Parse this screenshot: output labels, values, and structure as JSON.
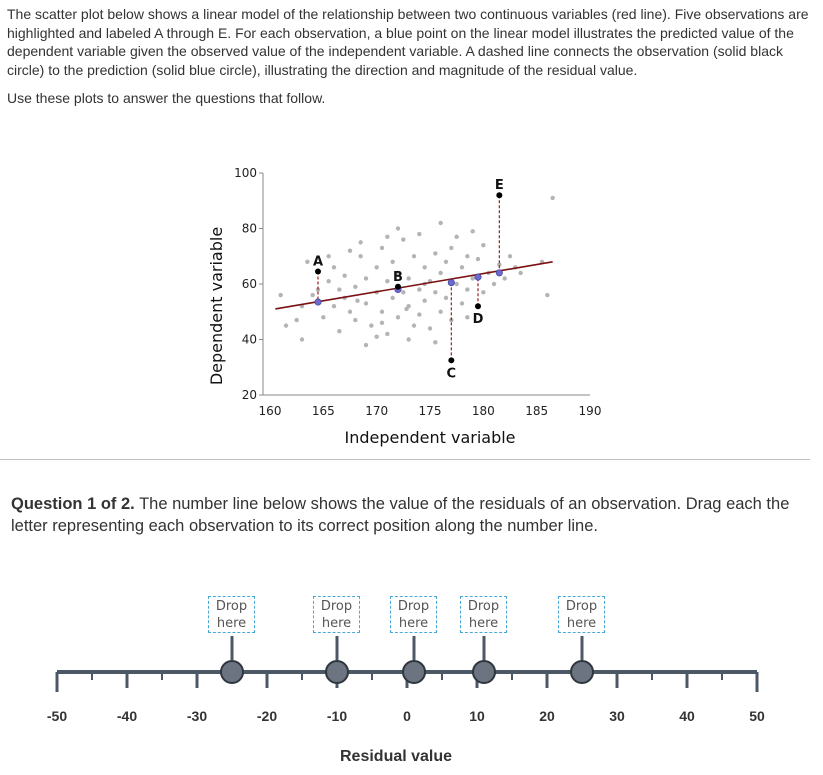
{
  "intro": {
    "paragraph": "The scatter plot below shows a linear model of the relationship between two continuous variables (red line). Five observations are highlighted and labeled A through E. For each observation, a blue point on the linear model illustrates the predicted value of the dependent variable given the observed value of the independent variable. A dashed line connects the observation (solid black circle) to the prediction (solid blue circle), illustrating the direction and magnitude of the residual value.",
    "instruction": "Use these plots to answer the questions that follow."
  },
  "chart_data": {
    "type": "scatter",
    "xlabel": "Independent variable",
    "ylabel": "Dependent variable",
    "xlim": [
      160,
      190
    ],
    "ylim": [
      20,
      100
    ],
    "xticks": [
      160,
      165,
      170,
      175,
      180,
      185,
      190
    ],
    "yticks": [
      20,
      40,
      60,
      80,
      100
    ],
    "grid": false,
    "regression_line": {
      "x": [
        160.5,
        186.5
      ],
      "y": [
        51,
        68
      ]
    },
    "highlighted": [
      {
        "label": "A",
        "x": 164.5,
        "observed": 64.5,
        "predicted": 53.5
      },
      {
        "label": "B",
        "x": 172,
        "observed": 59,
        "predicted": 58
      },
      {
        "label": "C",
        "x": 177,
        "observed": 32.5,
        "predicted": 60.5
      },
      {
        "label": "D",
        "x": 179.5,
        "observed": 52,
        "predicted": 62.5
      },
      {
        "label": "E",
        "x": 181.5,
        "observed": 92,
        "predicted": 64
      }
    ],
    "points": [
      [
        161,
        56
      ],
      [
        162.5,
        47
      ],
      [
        163,
        52
      ],
      [
        163.5,
        68
      ],
      [
        164,
        56
      ],
      [
        164.5,
        58
      ],
      [
        165,
        48
      ],
      [
        165.5,
        61
      ],
      [
        166,
        52
      ],
      [
        166,
        66
      ],
      [
        166.5,
        43
      ],
      [
        167,
        55
      ],
      [
        167,
        63
      ],
      [
        167.5,
        50
      ],
      [
        168,
        59
      ],
      [
        168,
        47
      ],
      [
        168.5,
        70
      ],
      [
        169,
        53
      ],
      [
        169,
        62
      ],
      [
        169.5,
        45
      ],
      [
        170,
        57
      ],
      [
        170,
        66
      ],
      [
        170.5,
        50
      ],
      [
        170.5,
        73
      ],
      [
        171,
        61
      ],
      [
        171,
        42
      ],
      [
        171.5,
        55
      ],
      [
        171.5,
        68
      ],
      [
        172,
        48
      ],
      [
        172,
        64
      ],
      [
        172.5,
        57
      ],
      [
        172.5,
        76
      ],
      [
        173,
        52
      ],
      [
        173,
        62
      ],
      [
        173.5,
        45
      ],
      [
        173.5,
        70
      ],
      [
        174,
        58
      ],
      [
        174,
        49
      ],
      [
        174.5,
        66
      ],
      [
        174.5,
        54
      ],
      [
        175,
        61
      ],
      [
        175,
        44
      ],
      [
        175.5,
        71
      ],
      [
        175.5,
        57
      ],
      [
        176,
        64
      ],
      [
        176,
        50
      ],
      [
        176.5,
        68
      ],
      [
        176.5,
        55
      ],
      [
        177,
        73
      ],
      [
        177,
        47
      ],
      [
        177.5,
        60
      ],
      [
        178,
        66
      ],
      [
        178,
        53
      ],
      [
        178.5,
        70
      ],
      [
        178.5,
        58
      ],
      [
        179,
        62
      ],
      [
        179.5,
        69
      ],
      [
        180,
        57
      ],
      [
        180,
        74
      ],
      [
        180.5,
        64
      ],
      [
        181,
        60
      ],
      [
        181.5,
        67
      ],
      [
        182,
        62
      ],
      [
        182.5,
        70
      ],
      [
        183,
        66
      ],
      [
        183.5,
        64
      ],
      [
        165.5,
        70
      ],
      [
        167.5,
        72
      ],
      [
        170,
        41
      ],
      [
        172,
        80
      ],
      [
        174,
        78
      ],
      [
        176,
        82
      ],
      [
        178.5,
        48
      ],
      [
        169,
        38
      ],
      [
        173,
        40
      ],
      [
        175.5,
        39
      ],
      [
        163,
        40
      ],
      [
        161.5,
        45
      ],
      [
        186,
        56
      ],
      [
        185.5,
        68
      ],
      [
        186.5,
        91
      ],
      [
        168.5,
        75
      ],
      [
        171,
        77
      ],
      [
        177.5,
        77
      ],
      [
        170.5,
        46
      ],
      [
        166.5,
        58
      ],
      [
        179,
        79
      ],
      [
        174.5,
        60
      ],
      [
        172.8,
        51
      ],
      [
        168.2,
        54
      ]
    ]
  },
  "question": {
    "prefix": "Question 1 of 2.",
    "text": " The number line below shows the value of the residuals of an observation. Drag each the letter representing each observation to its correct position along the number line."
  },
  "drop_target": {
    "line1": "Drop",
    "line2": "here"
  },
  "drop_positions": [
    -25,
    -10,
    1,
    11,
    25
  ],
  "number_line": {
    "min": -50,
    "max": 50,
    "labels": [
      "-50",
      "-40",
      "-30",
      "-20",
      "-10",
      "0",
      "10",
      "20",
      "30",
      "40",
      "50"
    ],
    "title": "Residual value"
  },
  "colors": {
    "line": "#7a1010",
    "predicted": "#6a6ad0",
    "observed": "#000000",
    "cloud": "#b4b4b4",
    "residual_dash": "#9a2020",
    "numberline": "#4d5866",
    "handle": "#6b7480",
    "dropbox_border": "#4aa8d8"
  }
}
